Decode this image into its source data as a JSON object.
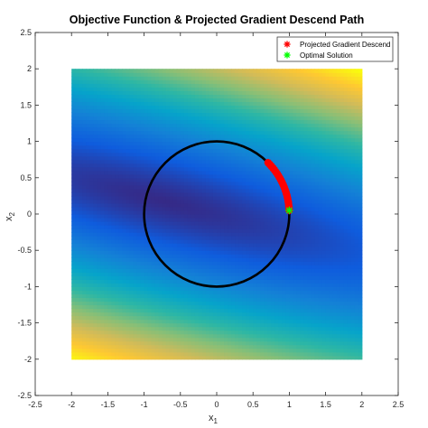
{
  "chart_data": {
    "type": "scatter",
    "title": "Objective Function & Projected Gradient Descend Path",
    "xlabel": "x",
    "xlabel_sub": "1",
    "ylabel": "x",
    "ylabel_sub": "2",
    "xlim": [
      -2.5,
      2.5
    ],
    "ylim": [
      -2.5,
      2.5
    ],
    "xticks": [
      -2.5,
      -2,
      -1.5,
      -1,
      -0.5,
      0,
      0.5,
      1,
      1.5,
      2,
      2.5
    ],
    "yticks": [
      -2.5,
      -2,
      -1.5,
      -1,
      -0.5,
      0,
      0.5,
      1,
      1.5,
      2,
      2.5
    ],
    "grid": false,
    "legend_position": "top-right",
    "background_field": {
      "type": "heatmap",
      "x_range": [
        -2,
        2
      ],
      "y_range": [
        -2,
        2
      ],
      "colormap": [
        "#352a87",
        "#0f5cdd",
        "#1481d6",
        "#06a4ca",
        "#2eb7a4",
        "#87bf77",
        "#d1bb59",
        "#fec832",
        "#f9fb0e"
      ]
    },
    "constraint": {
      "type": "circle",
      "center": [
        0,
        0
      ],
      "radius": 1,
      "color": "#000000"
    },
    "series": [
      {
        "name": "Projected Gradient Descend",
        "marker": "*",
        "color": "#ff0000",
        "x": [
          0.7071,
          0.7308,
          0.7536,
          0.7757,
          0.797,
          0.8174,
          0.8371,
          0.8559,
          0.8738,
          0.891,
          0.9072,
          0.9225,
          0.937,
          0.9506,
          0.9632,
          0.975,
          0.9858,
          0.995,
          0.998,
          0.9988
        ],
        "y": [
          0.7071,
          0.6826,
          0.6573,
          0.6311,
          0.604,
          0.5761,
          0.5471,
          0.5171,
          0.4862,
          0.454,
          0.4208,
          0.386,
          0.3494,
          0.3104,
          0.2688,
          0.2222,
          0.168,
          0.1,
          0.063,
          0.05
        ]
      },
      {
        "name": "Optimal Solution",
        "marker": "*",
        "color": "#00ff00",
        "x": [
          0.9988
        ],
        "y": [
          0.05
        ]
      }
    ]
  }
}
